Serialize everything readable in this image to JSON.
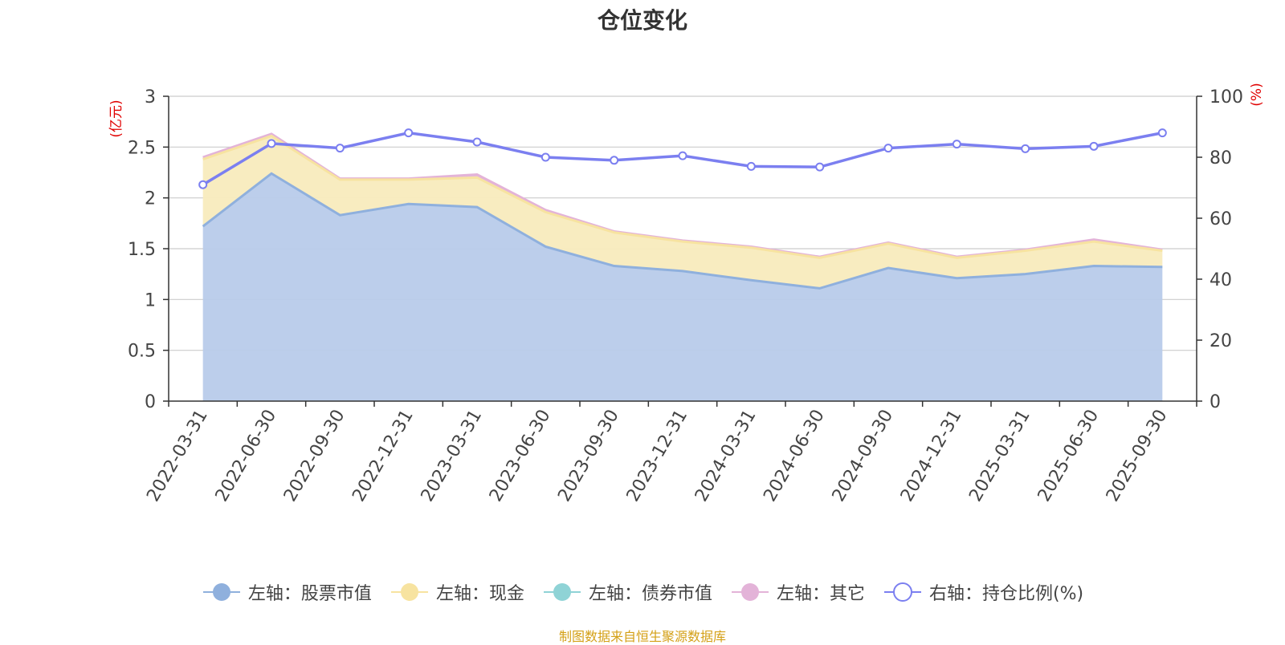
{
  "chart_data": {
    "type": "area",
    "title": "仓位变化",
    "source": "制图数据来自恒生聚源数据库",
    "categories": [
      "2022-03-31",
      "2022-06-30",
      "2022-09-30",
      "2022-12-31",
      "2023-03-31",
      "2023-06-30",
      "2023-09-30",
      "2023-12-31",
      "2024-03-31",
      "2024-06-30",
      "2024-09-30",
      "2024-12-31",
      "2025-03-31",
      "2025-06-30",
      "2025-09-30"
    ],
    "left_axis": {
      "unit": "(亿元)",
      "ylim": [
        0,
        3
      ],
      "ticks": [
        "0",
        "0.5",
        "1",
        "1.5",
        "2",
        "2.5",
        "3"
      ]
    },
    "right_axis": {
      "unit": "(%)",
      "ylim": [
        0,
        100
      ],
      "ticks": [
        "0",
        "20",
        "40",
        "60",
        "80",
        "100"
      ]
    },
    "series": [
      {
        "name": "左轴：股票市值",
        "axis": "left",
        "color": "#8fb0dd",
        "fill": "#b8cbea",
        "values": [
          1.72,
          2.24,
          1.83,
          1.94,
          1.91,
          1.52,
          1.33,
          1.28,
          1.19,
          1.11,
          1.31,
          1.21,
          1.25,
          1.33,
          1.32
        ]
      },
      {
        "name": "左轴：现金",
        "axis": "left",
        "color": "#f7e3a0",
        "fill": "#f8ebbd",
        "values": [
          0.66,
          0.37,
          0.35,
          0.24,
          0.29,
          0.34,
          0.33,
          0.29,
          0.32,
          0.3,
          0.24,
          0.2,
          0.23,
          0.24,
          0.16
        ]
      },
      {
        "name": "左轴：债券市值",
        "axis": "left",
        "color": "#8fd3d6",
        "fill": "#8fd3d6",
        "values": [
          0,
          0,
          0,
          0,
          0,
          0,
          0,
          0,
          0,
          0,
          0,
          0,
          0,
          0,
          0
        ]
      },
      {
        "name": "左轴：其它",
        "axis": "left",
        "color": "#e3b3d8",
        "fill": "#e3b3d8",
        "values": [
          0.02,
          0.02,
          0.01,
          0.01,
          0.03,
          0.02,
          0.01,
          0.01,
          0.01,
          0.01,
          0.01,
          0.01,
          0.01,
          0.02,
          0.01
        ]
      },
      {
        "name": "右轴：持仓比例(%)",
        "axis": "right",
        "color": "#7b7ff0",
        "values": [
          71.0,
          84.5,
          83.0,
          88.0,
          85.0,
          80.0,
          79.0,
          80.5,
          77.0,
          76.8,
          83.0,
          84.3,
          82.8,
          83.6,
          88.0
        ]
      }
    ]
  }
}
